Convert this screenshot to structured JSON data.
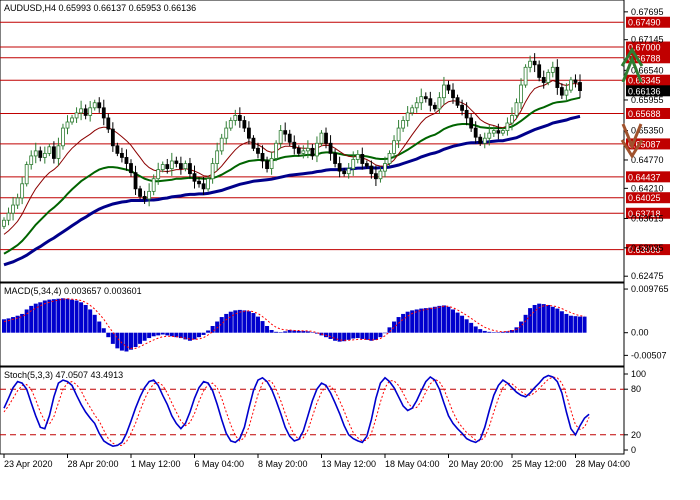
{
  "header": {
    "main": "AUDUSD,H4  0.65993 0.66137 0.65953 0.66136",
    "macd": "MACD(5,34,4) 0.003657 0.003601",
    "stoch": "Stoch(5,3,3) 47.0507 43.4913"
  },
  "colors": {
    "bull_candle": "#2e7d32",
    "bear_candle": "#000000",
    "ma_fast": "#8b0000",
    "ma_mid": "#006400",
    "ma_slow": "#00008b",
    "level_line": "#c00000",
    "level_label_bg": "#c00000",
    "price_label_bg": "#000000",
    "macd_hist": "#0000cd",
    "macd_signal": "#ff0000",
    "stoch_main": "#0000cd",
    "stoch_signal": "#ff0000",
    "arrow_up": "#2e7d32",
    "arrow_down": "#a0522d"
  },
  "chart_data": [
    {
      "type": "candlestick",
      "symbol": "AUDUSD",
      "timeframe": "H4",
      "ylim": [
        0.624,
        0.6785
      ],
      "y_ticks": [
        "0.67695",
        "0.67145",
        "0.66540",
        "0.65955",
        "0.65350",
        "0.64770",
        "0.64210",
        "0.63615",
        "0.63035",
        "0.62475"
      ],
      "y_tick_values": [
        0.67695,
        0.67145,
        0.6654,
        0.65955,
        0.6535,
        0.6477,
        0.6421,
        0.63615,
        0.63035,
        0.62475
      ],
      "levels": [
        "0.67490",
        "0.67000",
        "0.66788",
        "0.66345",
        "0.65688",
        "0.65087",
        "0.64437",
        "0.64025",
        "0.63718",
        "0.63000"
      ],
      "level_values": [
        0.6749,
        0.67,
        0.66788,
        0.66345,
        0.65688,
        0.65087,
        0.64437,
        0.64025,
        0.63718,
        0.63
      ],
      "current_price": "0.66136",
      "current_price_value": 0.66136,
      "x_ticks": [
        "23 Apr 2020",
        "28 Apr 20:00",
        "1 May 12:00",
        "6 May 04:00",
        "8 May 20:00",
        "13 May 12:00",
        "18 May 04:00",
        "20 May 20:00",
        "25 May 12:00",
        "28 May 04:00"
      ],
      "closes": [
        0.6358,
        0.6372,
        0.6388,
        0.6402,
        0.643,
        0.6468,
        0.6485,
        0.6495,
        0.6482,
        0.649,
        0.6503,
        0.648,
        0.6505,
        0.654,
        0.6552,
        0.656,
        0.657,
        0.6578,
        0.6565,
        0.658,
        0.659,
        0.658,
        0.656,
        0.6538,
        0.6505,
        0.649,
        0.6482,
        0.647,
        0.6452,
        0.642,
        0.6405,
        0.64,
        0.6415,
        0.644,
        0.6458,
        0.6468,
        0.646,
        0.6475,
        0.647,
        0.646,
        0.647,
        0.645,
        0.6435,
        0.643,
        0.642,
        0.644,
        0.647,
        0.6495,
        0.652,
        0.654,
        0.6555,
        0.6565,
        0.6555,
        0.654,
        0.652,
        0.65,
        0.649,
        0.6475,
        0.646,
        0.648,
        0.651,
        0.6535,
        0.6528,
        0.6512,
        0.65,
        0.649,
        0.6495,
        0.65,
        0.6485,
        0.651,
        0.653,
        0.651,
        0.649,
        0.647,
        0.6455,
        0.645,
        0.646,
        0.6478,
        0.6488,
        0.647,
        0.6465,
        0.645,
        0.644,
        0.6455,
        0.647,
        0.649,
        0.6515,
        0.654,
        0.6555,
        0.657,
        0.658,
        0.659,
        0.6602,
        0.6598,
        0.6585,
        0.6578,
        0.66,
        0.6625,
        0.6615,
        0.66,
        0.6585,
        0.6575,
        0.656,
        0.654,
        0.6522,
        0.651,
        0.652,
        0.653,
        0.6535,
        0.653,
        0.6535,
        0.655,
        0.6565,
        0.659,
        0.6625,
        0.666,
        0.6672,
        0.6665,
        0.664,
        0.663,
        0.665,
        0.666,
        0.662,
        0.6605,
        0.6615,
        0.6635,
        0.663,
        0.6614
      ],
      "indicators": {
        "ma_fast": [
          0.633,
          0.6337,
          0.6346,
          0.6356,
          0.637,
          0.6388,
          0.6405,
          0.642,
          0.6432,
          0.6443,
          0.6452,
          0.6458,
          0.6466,
          0.6478,
          0.649,
          0.65,
          0.6508,
          0.6516,
          0.6522,
          0.6528,
          0.6535,
          0.654,
          0.6542,
          0.6541,
          0.6536,
          0.653,
          0.6523,
          0.6515,
          0.6506,
          0.6494,
          0.6482,
          0.647,
          0.6462,
          0.6457,
          0.6455,
          0.6455,
          0.6454,
          0.6456,
          0.6458,
          0.6458,
          0.646,
          0.6458,
          0.6455,
          0.6451,
          0.6446,
          0.6445,
          0.6449,
          0.6456,
          0.6465,
          0.6476,
          0.6487,
          0.6497,
          0.6505,
          0.651,
          0.6513,
          0.6511,
          0.6507,
          0.6502,
          0.6495,
          0.6492,
          0.6494,
          0.6501,
          0.6504,
          0.6504,
          0.6503,
          0.6501,
          0.65,
          0.65,
          0.6497,
          0.65,
          0.6505,
          0.6506,
          0.6505,
          0.65,
          0.6494,
          0.6488,
          0.6484,
          0.6483,
          0.6484,
          0.6481,
          0.6478,
          0.6473,
          0.6467,
          0.6465,
          0.6465,
          0.6469,
          0.6477,
          0.6489,
          0.6501,
          0.6514,
          0.6527,
          0.6539,
          0.6551,
          0.656,
          0.6565,
          0.6569,
          0.6576,
          0.6586,
          0.6592,
          0.6594,
          0.6593,
          0.659,
          0.6585,
          0.6576,
          0.6567,
          0.6557,
          0.6551,
          0.6547,
          0.6545,
          0.6542,
          0.6541,
          0.6544,
          0.6549,
          0.6559,
          0.6574,
          0.6592,
          0.6607,
          0.6618,
          0.6622,
          0.6624,
          0.6629,
          0.6634,
          0.6631,
          0.6626,
          0.6624,
          0.6627,
          0.6628,
          0.6626
        ],
        "ma_mid": [
          0.6292,
          0.6297,
          0.6303,
          0.6309,
          0.6317,
          0.6327,
          0.6338,
          0.6349,
          0.6358,
          0.6367,
          0.6376,
          0.6383,
          0.6391,
          0.64,
          0.641,
          0.6419,
          0.6427,
          0.6435,
          0.6441,
          0.6447,
          0.6453,
          0.6458,
          0.6461,
          0.6463,
          0.6463,
          0.6462,
          0.646,
          0.6458,
          0.6455,
          0.645,
          0.6445,
          0.644,
          0.6437,
          0.6435,
          0.6435,
          0.6436,
          0.6437,
          0.6438,
          0.644,
          0.644,
          0.6441,
          0.6442,
          0.6441,
          0.6441,
          0.644,
          0.644,
          0.6441,
          0.6444,
          0.6448,
          0.6453,
          0.6458,
          0.6464,
          0.6469,
          0.6472,
          0.6475,
          0.6476,
          0.6477,
          0.6477,
          0.6476,
          0.6476,
          0.6478,
          0.6481,
          0.6483,
          0.6484,
          0.6485,
          0.6485,
          0.6486,
          0.6487,
          0.6487,
          0.6488,
          0.6491,
          0.6492,
          0.6492,
          0.6491,
          0.6489,
          0.6487,
          0.6486,
          0.6486,
          0.6486,
          0.6485,
          0.6484,
          0.6482,
          0.648,
          0.6479,
          0.6479,
          0.648,
          0.6483,
          0.6487,
          0.6492,
          0.6497,
          0.6503,
          0.6509,
          0.6515,
          0.652,
          0.6524,
          0.6527,
          0.6532,
          0.6538,
          0.6542,
          0.6545,
          0.6547,
          0.6548,
          0.6548,
          0.6547,
          0.6545,
          0.6542,
          0.6541,
          0.654,
          0.654,
          0.654,
          0.654,
          0.6541,
          0.6543,
          0.6548,
          0.6554,
          0.6561,
          0.6568,
          0.6574,
          0.6578,
          0.6581,
          0.6585,
          0.6589,
          0.6591,
          0.6592,
          0.6593,
          0.6596,
          0.6598,
          0.66
        ],
        "ma_slow": [
          0.627,
          0.6273,
          0.6276,
          0.628,
          0.6284,
          0.6289,
          0.6295,
          0.6301,
          0.6306,
          0.6312,
          0.6318,
          0.6323,
          0.6329,
          0.6335,
          0.6341,
          0.6347,
          0.6353,
          0.6359,
          0.6364,
          0.637,
          0.6375,
          0.638,
          0.6384,
          0.6387,
          0.639,
          0.6392,
          0.6394,
          0.6395,
          0.6397,
          0.6397,
          0.6397,
          0.6397,
          0.6398,
          0.6398,
          0.6399,
          0.6401,
          0.6402,
          0.6404,
          0.6405,
          0.6406,
          0.6408,
          0.6409,
          0.6409,
          0.641,
          0.641,
          0.6411,
          0.6413,
          0.6415,
          0.6417,
          0.642,
          0.6423,
          0.6426,
          0.6429,
          0.6431,
          0.6433,
          0.6435,
          0.6436,
          0.6437,
          0.6438,
          0.6439,
          0.6441,
          0.6443,
          0.6445,
          0.6447,
          0.6448,
          0.6449,
          0.645,
          0.6451,
          0.6452,
          0.6454,
          0.6455,
          0.6457,
          0.6458,
          0.6458,
          0.6458,
          0.6459,
          0.6459,
          0.646,
          0.6461,
          0.6461,
          0.6462,
          0.6462,
          0.6461,
          0.6462,
          0.6462,
          0.6463,
          0.6465,
          0.6467,
          0.647,
          0.6473,
          0.6476,
          0.6479,
          0.6483,
          0.6486,
          0.6489,
          0.6491,
          0.6494,
          0.6498,
          0.6501,
          0.6504,
          0.6506,
          0.6508,
          0.651,
          0.6511,
          0.6511,
          0.6512,
          0.6512,
          0.6513,
          0.6514,
          0.6515,
          0.6515,
          0.6517,
          0.6519,
          0.6521,
          0.6525,
          0.6529,
          0.6533,
          0.6537,
          0.654,
          0.6543,
          0.6546,
          0.655,
          0.6552,
          0.6554,
          0.6556,
          0.6559,
          0.6561,
          0.6563
        ]
      }
    },
    {
      "type": "bar",
      "name": "MACD",
      "ylim": [
        -0.007,
        0.01
      ],
      "y_ticks": [
        "0.009765",
        "0.00",
        "-0.00507"
      ],
      "y_tick_values": [
        0.009765,
        0.0,
        -0.00507
      ],
      "values": [
        0.003,
        0.0032,
        0.0035,
        0.0038,
        0.0042,
        0.0052,
        0.006,
        0.0065,
        0.0068,
        0.0072,
        0.0074,
        0.0075,
        0.0076,
        0.0077,
        0.0076,
        0.0074,
        0.0072,
        0.0068,
        0.0062,
        0.0052,
        0.004,
        0.0025,
        0.001,
        -0.001,
        -0.0025,
        -0.0035,
        -0.004,
        -0.0042,
        -0.0038,
        -0.0032,
        -0.0025,
        -0.0018,
        -0.0012,
        -0.0008,
        -0.0006,
        -0.0004,
        -0.0006,
        -0.0008,
        -0.001,
        -0.0012,
        -0.0015,
        -0.0018,
        -0.0015,
        -0.001,
        -0.0005,
        0.0005,
        0.0015,
        0.0025,
        0.0035,
        0.0042,
        0.0047,
        0.005,
        0.0051,
        0.005,
        0.0048,
        0.0044,
        0.0036,
        0.0026,
        0.0015,
        0.0006,
        0.0002,
        0.0001,
        0.0003,
        0.0006,
        0.0005,
        0.0004,
        0.0004,
        0.0003,
        0.0001,
        -0.0002,
        -0.0006,
        -0.001,
        -0.0014,
        -0.0018,
        -0.002,
        -0.0019,
        -0.0016,
        -0.0013,
        -0.0012,
        -0.0014,
        -0.0016,
        -0.0018,
        -0.0016,
        -0.001,
        0.0,
        0.0012,
        0.0025,
        0.0035,
        0.0042,
        0.0047,
        0.005,
        0.0052,
        0.0054,
        0.0055,
        0.0056,
        0.0058,
        0.006,
        0.0061,
        0.0058,
        0.0052,
        0.0045,
        0.0038,
        0.003,
        0.0022,
        0.0014,
        0.0008,
        0.0004,
        0.0002,
        0.0001,
        0.0001,
        0.0002,
        0.0003,
        0.0006,
        0.0012,
        0.0025,
        0.004,
        0.0055,
        0.0062,
        0.0065,
        0.0064,
        0.0062,
        0.0058,
        0.0054,
        0.0048,
        0.0042,
        0.0038,
        0.0037,
        0.0036,
        0.0036
      ],
      "signal": [
        0.0025,
        0.0027,
        0.003,
        0.0033,
        0.0036,
        0.0042,
        0.0049,
        0.0055,
        0.006,
        0.0065,
        0.0068,
        0.0071,
        0.0073,
        0.0075,
        0.0076,
        0.0075,
        0.0074,
        0.0072,
        0.0068,
        0.0061,
        0.0053,
        0.0042,
        0.003,
        0.0015,
        0.0001,
        -0.0012,
        -0.0023,
        -0.0031,
        -0.0035,
        -0.0035,
        -0.0031,
        -0.0026,
        -0.0021,
        -0.0016,
        -0.0012,
        -0.0009,
        -0.0008,
        -0.0008,
        -0.0009,
        -0.001,
        -0.0012,
        -0.0014,
        -0.0015,
        -0.0014,
        -0.0011,
        -0.0005,
        0.0002,
        0.0011,
        0.002,
        0.0029,
        0.0036,
        0.0042,
        0.0046,
        0.0048,
        0.0049,
        0.0047,
        0.0043,
        0.0036,
        0.0028,
        0.0019,
        0.0012,
        0.0008,
        0.0006,
        0.0006,
        0.0005,
        0.0005,
        0.0004,
        0.0004,
        0.0003,
        0.0,
        -0.0003,
        -0.0006,
        -0.0009,
        -0.0013,
        -0.0016,
        -0.0017,
        -0.0017,
        -0.0016,
        -0.0015,
        -0.0015,
        -0.0015,
        -0.0016,
        -0.0016,
        -0.0013,
        -0.0007,
        0.0002,
        0.0012,
        0.0021,
        0.003,
        0.0037,
        0.0043,
        0.0047,
        0.005,
        0.0052,
        0.0054,
        0.0055,
        0.0057,
        0.0059,
        0.0059,
        0.0056,
        0.0051,
        0.0045,
        0.0039,
        0.0032,
        0.0025,
        0.0018,
        0.0012,
        0.0008,
        0.0005,
        0.0003,
        0.0002,
        0.0003,
        0.0004,
        0.0007,
        0.0015,
        0.0026,
        0.0038,
        0.0048,
        0.0056,
        0.006,
        0.0061,
        0.006,
        0.0058,
        0.0054,
        0.0049,
        0.0045,
        0.0041,
        0.0038,
        0.0037
      ]
    },
    {
      "type": "line",
      "name": "Stoch",
      "ylim": [
        0,
        100
      ],
      "y_ticks": [
        "100",
        "80",
        "20",
        "0"
      ],
      "y_tick_values": [
        100,
        80,
        20,
        0
      ],
      "levels": [
        80,
        20
      ],
      "k": [
        55,
        68,
        82,
        90,
        88,
        80,
        62,
        45,
        30,
        28,
        45,
        70,
        88,
        92,
        90,
        85,
        72,
        60,
        50,
        42,
        35,
        22,
        12,
        8,
        5,
        6,
        10,
        22,
        38,
        55,
        70,
        82,
        90,
        92,
        85,
        72,
        60,
        45,
        35,
        28,
        35,
        50,
        68,
        82,
        90,
        88,
        78,
        60,
        40,
        22,
        12,
        10,
        15,
        30,
        55,
        78,
        92,
        95,
        90,
        80,
        65,
        48,
        30,
        18,
        12,
        14,
        25,
        45,
        65,
        80,
        88,
        85,
        75,
        62,
        48,
        32,
        20,
        15,
        12,
        10,
        18,
        40,
        68,
        88,
        95,
        90,
        82,
        70,
        58,
        52,
        55,
        65,
        78,
        90,
        96,
        92,
        80,
        62,
        45,
        35,
        28,
        22,
        15,
        12,
        10,
        14,
        30,
        52,
        72,
        85,
        92,
        88,
        82,
        76,
        72,
        70,
        75,
        82,
        88,
        95,
        98,
        96,
        90,
        75,
        50,
        28,
        20,
        32,
        42,
        47
      ],
      "d": [
        50,
        58,
        68,
        78,
        85,
        86,
        80,
        66,
        50,
        38,
        34,
        44,
        62,
        80,
        88,
        90,
        86,
        78,
        66,
        56,
        46,
        38,
        26,
        15,
        9,
        6,
        6,
        11,
        22,
        35,
        52,
        67,
        79,
        87,
        89,
        85,
        75,
        62,
        50,
        38,
        32,
        36,
        48,
        64,
        78,
        86,
        88,
        82,
        68,
        50,
        33,
        19,
        12,
        16,
        30,
        51,
        73,
        88,
        92,
        90,
        80,
        65,
        48,
        32,
        20,
        14,
        16,
        26,
        44,
        62,
        76,
        84,
        84,
        77,
        65,
        51,
        36,
        23,
        16,
        12,
        13,
        22,
        41,
        63,
        82,
        91,
        91,
        85,
        75,
        63,
        55,
        56,
        64,
        76,
        87,
        93,
        90,
        80,
        65,
        50,
        38,
        30,
        23,
        18,
        13,
        12,
        17,
        31,
        50,
        68,
        82,
        88,
        87,
        82,
        77,
        73,
        72,
        75,
        81,
        87,
        93,
        96,
        95,
        88,
        73,
        52,
        33,
        27,
        30,
        43
      ]
    }
  ]
}
